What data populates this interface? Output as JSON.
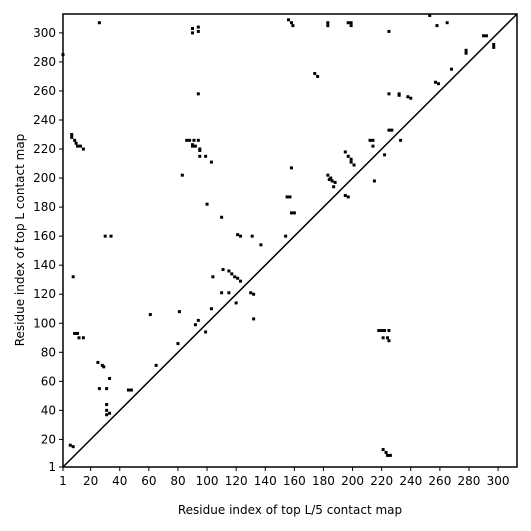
{
  "chart_data": {
    "type": "scatter",
    "xlabel": "Residue index of top L/5 contact map",
    "ylabel": "Residue index of top L contact map",
    "xlim": [
      1,
      313
    ],
    "ylim": [
      1,
      313
    ],
    "xticks": [
      1,
      20,
      40,
      60,
      80,
      100,
      120,
      140,
      160,
      180,
      200,
      220,
      240,
      260,
      280,
      300
    ],
    "yticks": [
      1,
      20,
      40,
      60,
      80,
      100,
      120,
      140,
      160,
      180,
      200,
      220,
      240,
      260,
      280,
      300
    ],
    "diagonal": {
      "x": [
        1,
        313
      ],
      "y": [
        1,
        313
      ],
      "color": "#000000"
    },
    "color": "#000000",
    "x": [
      1,
      26,
      90,
      90,
      94,
      94,
      156,
      158,
      159,
      183,
      183,
      197,
      199,
      199,
      225,
      253,
      258,
      265,
      290,
      292,
      278,
      278,
      297,
      297,
      174,
      176,
      94,
      225,
      232,
      232,
      238,
      240,
      257,
      259,
      268,
      225,
      227,
      233,
      212,
      214,
      214,
      222,
      215,
      7,
      7,
      9,
      10,
      11,
      13,
      15,
      86,
      88,
      91,
      94,
      90,
      92,
      95,
      95,
      90,
      95,
      99,
      103,
      83,
      100,
      110,
      183,
      185,
      186,
      188,
      187,
      184,
      195,
      197,
      199,
      199,
      201,
      195,
      197,
      155,
      157,
      158,
      158,
      160,
      154,
      121,
      123,
      131,
      137,
      111,
      115,
      117,
      119,
      121,
      123,
      104,
      110,
      115,
      120,
      130,
      132,
      132,
      103,
      94,
      92,
      99,
      81,
      80,
      65,
      61,
      9,
      11,
      12,
      15,
      28,
      29,
      25,
      8,
      30,
      34,
      33,
      26,
      31,
      46,
      48,
      31,
      31,
      33,
      31,
      6,
      8,
      218,
      220,
      222,
      221,
      224,
      225,
      225,
      221,
      223,
      224,
      226
    ],
    "y": [
      285,
      307,
      303,
      300,
      304,
      301,
      309,
      307,
      305,
      307,
      305,
      307,
      307,
      305,
      301,
      312,
      305,
      307,
      298,
      298,
      288,
      286,
      292,
      290,
      272,
      270,
      258,
      258,
      257,
      258,
      256,
      255,
      266,
      265,
      275,
      233,
      233,
      226,
      226,
      226,
      222,
      216,
      198,
      228,
      230,
      226,
      224,
      222,
      222,
      220,
      226,
      226,
      226,
      226,
      223,
      222,
      220,
      219,
      222,
      215,
      215,
      211,
      202,
      182,
      173,
      202,
      200,
      198,
      197,
      194,
      199,
      218,
      215,
      213,
      211,
      209,
      188,
      187,
      187,
      187,
      207,
      176,
      176,
      160,
      161,
      160,
      160,
      154,
      137,
      136,
      134,
      132,
      131,
      129,
      132,
      121,
      121,
      114,
      121,
      120,
      103,
      110,
      102,
      99,
      94,
      108,
      86,
      71,
      106,
      93,
      93,
      90,
      90,
      71,
      70,
      73,
      132,
      160,
      160,
      62,
      55,
      55,
      54,
      54,
      44,
      40,
      38,
      37,
      16,
      15,
      95,
      95,
      95,
      90,
      90,
      95,
      88,
      13,
      11,
      9,
      9
    ]
  }
}
